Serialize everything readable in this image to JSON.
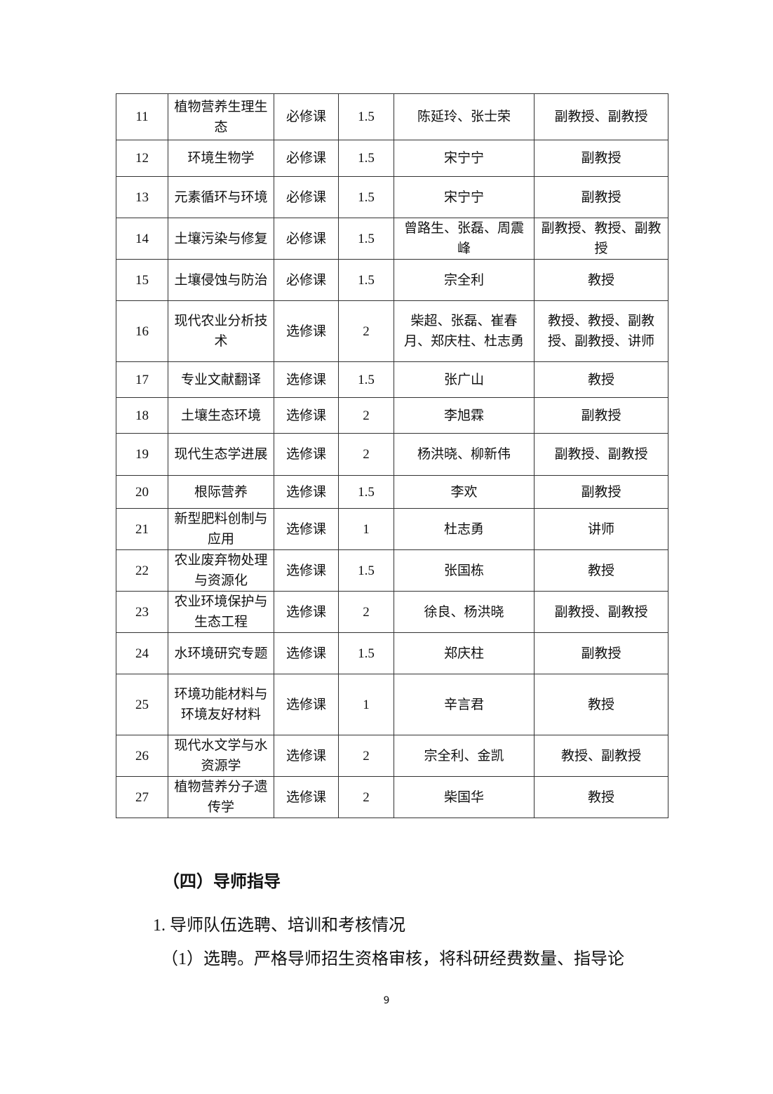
{
  "table": {
    "rows": [
      [
        "11",
        "植物营养生理生态",
        "必修课",
        "1.5",
        "陈延玲、张士荣",
        "副教授、副教授"
      ],
      [
        "12",
        "环境生物学",
        "必修课",
        "1.5",
        "宋宁宁",
        "副教授"
      ],
      [
        "13",
        "元素循环与环境",
        "必修课",
        "1.5",
        "宋宁宁",
        "副教授"
      ],
      [
        "14",
        "土壤污染与修复",
        "必修课",
        "1.5",
        "曾路生、张磊、周震峰",
        "副教授、教授、副教授"
      ],
      [
        "15",
        "土壤侵蚀与防治",
        "必修课",
        "1.5",
        "宗全利",
        "教授"
      ],
      [
        "16",
        "现代农业分析技术",
        "选修课",
        "2",
        "柴超、张磊、崔春月、郑庆柱、杜志勇",
        "教授、教授、副教授、副教授、讲师"
      ],
      [
        "17",
        "专业文献翻译",
        "选修课",
        "1.5",
        "张广山",
        "教授"
      ],
      [
        "18",
        "土壤生态环境",
        "选修课",
        "2",
        "李旭霖",
        "副教授"
      ],
      [
        "19",
        "现代生态学进展",
        "选修课",
        "2",
        "杨洪晓、柳新伟",
        "副教授、副教授"
      ],
      [
        "20",
        "根际营养",
        "选修课",
        "1.5",
        "李欢",
        "副教授"
      ],
      [
        "21",
        "新型肥料创制与应用",
        "选修课",
        "1",
        "杜志勇",
        "讲师"
      ],
      [
        "22",
        "农业废弃物处理与资源化",
        "选修课",
        "1.5",
        "张国栋",
        "教授"
      ],
      [
        "23",
        "农业环境保护与生态工程",
        "选修课",
        "2",
        "徐良、杨洪晓",
        "副教授、副教授"
      ],
      [
        "24",
        "水环境研究专题",
        "选修课",
        "1.5",
        "郑庆柱",
        "副教授"
      ],
      [
        "25",
        "环境功能材料与环境友好材料",
        "选修课",
        "1",
        "辛言君",
        "教授"
      ],
      [
        "26",
        "现代水文学与水资源学",
        "选修课",
        "2",
        "宗全利、金凯",
        "教授、副教授"
      ],
      [
        "27",
        "植物营养分子遗传学",
        "选修课",
        "2",
        "柴国华",
        "教授"
      ]
    ]
  },
  "section_heading": "（四）导师指导",
  "subheading": "1. 导师队伍选聘、培训和考核情况",
  "paragraph": "（1）选聘。严格导师招生资格审核，将科研经费数量、指导论",
  "page_number": "9"
}
